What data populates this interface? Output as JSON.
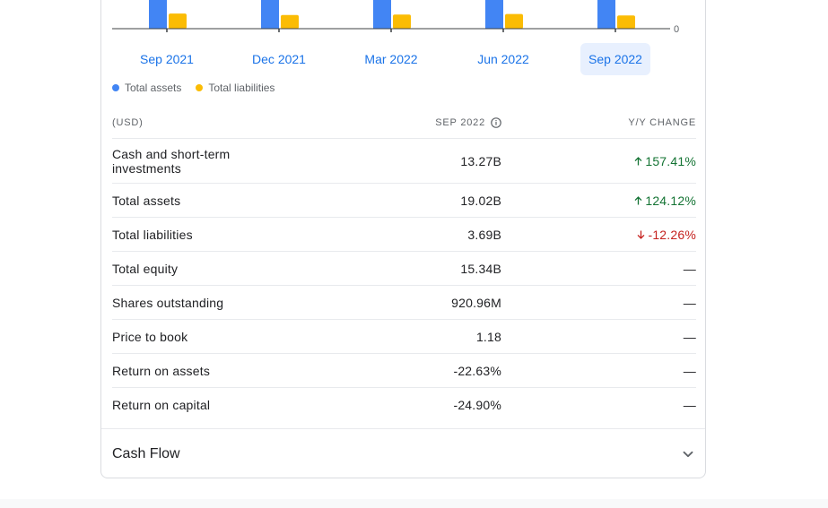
{
  "chart_data": {
    "type": "bar",
    "categories": [
      "Sep 2021",
      "Dec 2021",
      "Mar 2022",
      "Jun 2022",
      "Sep 2022"
    ],
    "selected_category": "Sep 2022",
    "series": [
      {
        "name": "Total assets",
        "color": "#4285f4",
        "values": [
          8.49,
          12.2,
          17.9,
          18.5,
          19.02
        ]
      },
      {
        "name": "Total liabilities",
        "color": "#fbbc04",
        "values": [
          4.21,
          3.8,
          3.95,
          4.1,
          3.69
        ]
      }
    ],
    "y_tick_labels": [
      "0"
    ],
    "ylim": [
      0,
      8
    ]
  },
  "legend": {
    "items": [
      {
        "label": "Total assets",
        "color": "#4285f4"
      },
      {
        "label": "Total liabilities",
        "color": "#fbbc04"
      }
    ]
  },
  "table": {
    "headers": {
      "currency": "(USD)",
      "period": "SEP 2022",
      "change": "Y/Y CHANGE"
    },
    "rows": [
      {
        "label": "Cash and short-term investments",
        "value": "13.27B",
        "change": "157.41%",
        "direction": "up"
      },
      {
        "label": "Total assets",
        "value": "19.02B",
        "change": "124.12%",
        "direction": "up"
      },
      {
        "label": "Total liabilities",
        "value": "3.69B",
        "change": "-12.26%",
        "direction": "down"
      },
      {
        "label": "Total equity",
        "value": "15.34B",
        "change": "—",
        "direction": "none"
      },
      {
        "label": "Shares outstanding",
        "value": "920.96M",
        "change": "—",
        "direction": "none"
      },
      {
        "label": "Price to book",
        "value": "1.18",
        "change": "—",
        "direction": "none"
      },
      {
        "label": "Return on assets",
        "value": "-22.63%",
        "change": "—",
        "direction": "none"
      },
      {
        "label": "Return on capital",
        "value": "-24.90%",
        "change": "—",
        "direction": "none"
      }
    ]
  },
  "cashflow": {
    "title": "Cash Flow",
    "icon": "chevron-down-icon"
  },
  "colors": {
    "accent": "#1a73e8",
    "positive": "#137333",
    "negative": "#c5221f"
  }
}
